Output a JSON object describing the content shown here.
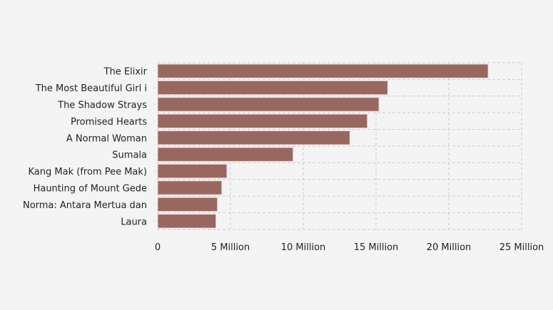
{
  "chart_data": {
    "type": "bar",
    "orientation": "horizontal",
    "title": "",
    "xlabel": "",
    "ylabel": "",
    "categories": [
      "The Elixir",
      "The Most Beautiful Girl i",
      "The Shadow Strays",
      "Promised Hearts",
      "A Normal Woman",
      "Sumala",
      "Kang Mak (from Pee Mak)",
      "Haunting of Mount Gede",
      "Norma: Antara Mertua dan",
      "Laura"
    ],
    "values": [
      22700000,
      15800000,
      15200000,
      14400000,
      13200000,
      9300000,
      4750000,
      4400000,
      4100000,
      4000000
    ],
    "xlim": [
      0,
      25000000
    ],
    "xticks": [
      0,
      5000000,
      10000000,
      15000000,
      20000000,
      25000000
    ],
    "xtick_labels": [
      "0",
      "5 Million",
      "10 Million",
      "15 Million",
      "20 Million",
      "25 Million"
    ],
    "grid": true,
    "bar_color": "#98675f",
    "bar_edge_color": "#e6d6d3",
    "grid_color": "#cccccc"
  }
}
